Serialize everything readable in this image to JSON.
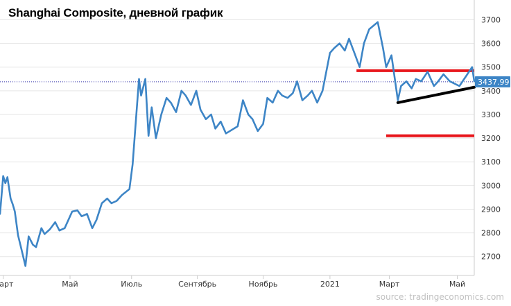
{
  "chart_data": {
    "type": "line",
    "title": "Shanghai Composite, дневной график",
    "source": "source: tradingeconomics.com",
    "y_ticks": [
      2700,
      2800,
      2900,
      3000,
      3100,
      3200,
      3300,
      3400,
      3500,
      3600,
      3700
    ],
    "ylim": [
      2620,
      3760
    ],
    "x_ticks": [
      "Март",
      "Май",
      "Июль",
      "Сентябрь",
      "Ноябрь",
      "2021",
      "Март",
      "Май"
    ],
    "x_range": [
      "2020-02-28",
      "2021-05-20"
    ],
    "current_value": "3437.99",
    "current_level": 3437.99,
    "colors": {
      "line": "#3d85c6",
      "resistance": "#e8161b",
      "trendline": "#000000",
      "price_label_bg": "#3d85c6",
      "grid": "#e6e6e6"
    },
    "series": [
      {
        "dates": [
          "2020-02-28",
          "2020-03-02",
          "2020-03-04",
          "2020-03-06",
          "2020-03-09",
          "2020-03-11",
          "2020-03-13",
          "2020-03-16",
          "2020-03-19",
          "2020-03-23",
          "2020-03-26",
          "2020-03-30",
          "2020-04-02",
          "2020-04-07",
          "2020-04-10",
          "2020-04-15",
          "2020-04-20",
          "2020-04-24",
          "2020-04-29",
          "2020-05-06",
          "2020-05-11",
          "2020-05-15",
          "2020-05-20",
          "2020-05-25",
          "2020-05-29",
          "2020-06-03",
          "2020-06-08",
          "2020-06-12",
          "2020-06-17",
          "2020-06-22",
          "2020-06-29",
          "2020-07-02",
          "2020-07-06",
          "2020-07-08",
          "2020-07-10",
          "2020-07-14",
          "2020-07-17",
          "2020-07-20",
          "2020-07-24",
          "2020-07-29",
          "2020-08-03",
          "2020-08-07",
          "2020-08-12",
          "2020-08-17",
          "2020-08-21",
          "2020-08-26",
          "2020-08-31",
          "2020-09-04",
          "2020-09-09",
          "2020-09-14",
          "2020-09-18",
          "2020-09-23",
          "2020-09-28",
          "2020-10-09",
          "2020-10-14",
          "2020-10-19",
          "2020-10-23",
          "2020-10-28",
          "2020-11-02",
          "2020-11-06",
          "2020-11-11",
          "2020-11-16",
          "2020-11-20",
          "2020-11-25",
          "2020-11-30",
          "2020-12-04",
          "2020-12-09",
          "2020-12-14",
          "2020-12-18",
          "2020-12-23",
          "2020-12-28",
          "2021-01-04",
          "2021-01-08",
          "2021-01-13",
          "2021-01-18",
          "2021-01-22",
          "2021-01-27",
          "2021-02-01",
          "2021-02-05",
          "2021-02-10",
          "2021-02-18",
          "2021-02-23",
          "2021-02-26",
          "2021-03-03",
          "2021-03-09",
          "2021-03-12",
          "2021-03-17",
          "2021-03-22",
          "2021-03-26",
          "2021-03-31",
          "2021-04-06",
          "2021-04-12",
          "2021-04-16",
          "2021-04-21",
          "2021-04-27",
          "2021-05-06",
          "2021-05-12",
          "2021-05-18",
          "2021-05-20"
        ],
        "values": [
          2880,
          3040,
          3010,
          3035,
          2945,
          2920,
          2890,
          2790,
          2735,
          2660,
          2785,
          2750,
          2740,
          2820,
          2795,
          2815,
          2845,
          2810,
          2820,
          2890,
          2895,
          2870,
          2880,
          2820,
          2855,
          2925,
          2945,
          2925,
          2935,
          2960,
          2985,
          3090,
          3330,
          3450,
          3380,
          3450,
          3210,
          3330,
          3200,
          3300,
          3370,
          3350,
          3310,
          3400,
          3380,
          3340,
          3400,
          3320,
          3280,
          3300,
          3240,
          3270,
          3220,
          3250,
          3360,
          3300,
          3280,
          3230,
          3260,
          3370,
          3350,
          3400,
          3380,
          3370,
          3390,
          3440,
          3360,
          3380,
          3400,
          3350,
          3400,
          3560,
          3580,
          3600,
          3570,
          3620,
          3560,
          3500,
          3600,
          3660,
          3690,
          3580,
          3500,
          3550,
          3360,
          3420,
          3440,
          3410,
          3450,
          3440,
          3480,
          3420,
          3440,
          3470,
          3440,
          3420,
          3460,
          3500,
          3440
        ]
      }
    ],
    "annotations": [
      {
        "name": "resistance-line-upper",
        "kind": "horizontal",
        "level": 3485,
        "from": "2021-01-29",
        "to": "2021-05-20"
      },
      {
        "name": "support-line-lower",
        "kind": "horizontal",
        "level": 3210,
        "from": "2021-02-26",
        "to": "2021-05-20"
      },
      {
        "name": "rising-trendline",
        "kind": "segment",
        "from": [
          "2021-03-09",
          3350
        ],
        "to": [
          "2021-05-20",
          3415
        ]
      }
    ]
  }
}
